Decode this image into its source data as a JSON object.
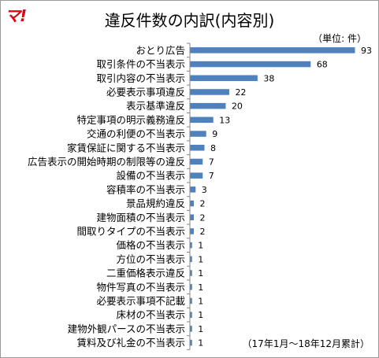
{
  "logo_text": "マ!",
  "chart_data": {
    "type": "bar",
    "orientation": "horizontal",
    "title": "違反件数の内訳(内容別)",
    "unit_label": "（単位: 件）",
    "note": "（17年1月〜18年12月累計）",
    "bar_color": "#4f81bd",
    "categories": [
      "おとり広告",
      "取引条件の不当表示",
      "取引内容の不当表示",
      "必要表示事項違反",
      "表示基準違反",
      "特定事項の明示義務違反",
      "交通の利便の不当表示",
      "家賃保証に関する不当表示",
      "広告表示の開始時期の制限等の違反",
      "設備の不当表示",
      "容積率の不当表示",
      "景品規約違反",
      "建物面積の不当表示",
      "間取りタイプの不当表示",
      "価格の不当表示",
      "方位の不当表示",
      "二重価格表示違反",
      "物件写真の不当表示",
      "必要表示事項不記載",
      "床材の不当表示",
      "建物外観パースの不当表示",
      "賃料及び礼金の不当表示"
    ],
    "values": [
      93,
      68,
      38,
      22,
      20,
      13,
      9,
      8,
      7,
      7,
      3,
      2,
      2,
      2,
      1,
      1,
      1,
      1,
      1,
      1,
      1,
      1
    ],
    "xlim": [
      0,
      93
    ],
    "data_labels": true,
    "legend": "none",
    "grid": false
  }
}
